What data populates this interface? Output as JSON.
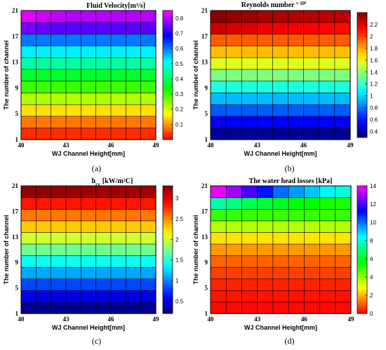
{
  "chart_data": [
    {
      "type": "heatmap",
      "panel_label": "(a)",
      "title": "Fluid Velocity[m³/s]",
      "xlabel": "WJ Channel Height[mm]",
      "ylabel": "The number of channel",
      "x_ticks": [
        "40",
        "43",
        "46",
        "49"
      ],
      "y_ticks": [
        "1",
        "5",
        "9",
        "13",
        "17",
        "21"
      ],
      "xlim": [
        40,
        49
      ],
      "ylim": [
        1,
        21
      ],
      "colormap": "jet-reversed",
      "colorbar_range": [
        0,
        0.85
      ],
      "colorbar_ticks": [
        "0.1",
        "0.2",
        "0.3",
        "0.4",
        "0.5",
        "0.6",
        "0.7",
        "0.8"
      ],
      "cols": 9,
      "rows": 11,
      "row_values": [
        0.03,
        0.08,
        0.15,
        0.22,
        0.3,
        0.37,
        0.45,
        0.52,
        0.6,
        0.68,
        0.76
      ],
      "top_row_values": [
        0.83,
        0.82,
        0.81,
        0.8,
        0.8,
        0.8,
        0.8,
        0.8,
        0.8
      ],
      "second_row_values": [
        0.76,
        0.75,
        0.74,
        0.74,
        0.74,
        0.74,
        0.74,
        0.74,
        0.74
      ],
      "grid": true
    },
    {
      "type": "heatmap",
      "panel_label": "(b)",
      "title": "Reynolds number",
      "title_multiplier": "× 10⁴",
      "xlabel": "WJ Channel Height[mm]",
      "ylabel": "The number of channel",
      "x_ticks": [
        "40",
        "43",
        "46",
        "49"
      ],
      "y_ticks": [
        "1",
        "5",
        "9",
        "13",
        "17",
        "21"
      ],
      "xlim": [
        40,
        49
      ],
      "ylim": [
        1,
        21
      ],
      "colormap": "jet",
      "colorbar_range": [
        0.3,
        2.4
      ],
      "colorbar_ticks": [
        "0.4",
        "0.6",
        "0.8",
        "1",
        "1.2",
        "1.4",
        "1.6",
        "1.8",
        "2",
        "2.2"
      ],
      "cols": 9,
      "rows": 11,
      "row_values": [
        0.35,
        0.55,
        0.75,
        0.95,
        1.15,
        1.35,
        1.55,
        1.75,
        1.95,
        2.15,
        2.3
      ],
      "top_row_values": [
        2.38,
        2.36,
        2.34,
        2.32,
        2.31,
        2.3,
        2.29,
        2.28,
        2.28
      ],
      "second_row_values": [
        2.25,
        2.22,
        2.2,
        2.18,
        2.16,
        2.15,
        2.14,
        2.13,
        2.12
      ],
      "grid": true
    },
    {
      "type": "heatmap",
      "panel_label": "(c)",
      "title_main": "h",
      "title_sub": "cv",
      "title_unit": "[kW/m²C]",
      "xlabel": "WJ Channel Height[mm]",
      "ylabel": "The number of channel",
      "x_ticks": [
        "40",
        "43",
        "46",
        "49"
      ],
      "y_ticks": [
        "1",
        "5",
        "9",
        "13",
        "17",
        "21"
      ],
      "xlim": [
        40,
        49
      ],
      "ylim": [
        1,
        21
      ],
      "colormap": "jet",
      "colorbar_range": [
        0.2,
        3.3
      ],
      "colorbar_ticks": [
        "0.5",
        "1",
        "1.5",
        "2",
        "2.5",
        "3"
      ],
      "cols": 9,
      "rows": 11,
      "row_values": [
        0.25,
        0.5,
        0.8,
        1.1,
        1.4,
        1.7,
        2.0,
        2.3,
        2.55,
        2.85,
        3.1
      ],
      "top_row_values": [
        3.25,
        3.24,
        3.23,
        3.22,
        3.21,
        3.2,
        3.2,
        3.2,
        3.2
      ],
      "second_row_values": [
        2.85,
        2.85,
        2.85,
        2.85,
        2.85,
        2.85,
        2.85,
        2.85,
        2.85
      ],
      "grid": true
    },
    {
      "type": "heatmap",
      "panel_label": "(d)",
      "title": "The water head losses [kPa]",
      "xlabel": "WJ Channel Height[mm]",
      "ylabel": "The number of channel",
      "x_ticks": [
        "40",
        "43",
        "46",
        "49"
      ],
      "y_ticks": [
        "1",
        "5",
        "9",
        "13",
        "17",
        "21"
      ],
      "xlim": [
        40,
        49
      ],
      "ylim": [
        1,
        21
      ],
      "colormap": "jet-reversed",
      "colorbar_range": [
        0,
        14
      ],
      "colorbar_ticks": [
        "0",
        "2",
        "4",
        "6",
        "8",
        "10",
        "12",
        "14"
      ],
      "cols": 9,
      "rows": 11,
      "row_values": [
        0.1,
        0.2,
        0.4,
        0.7,
        1.1,
        1.7,
        2.5,
        3.6,
        5.0,
        7.0,
        9.0
      ],
      "top_row_values": [
        13.8,
        13.0,
        12.0,
        11.0,
        10.0,
        9.5,
        9.0,
        8.5,
        8.0
      ],
      "second_row_values": [
        7.5,
        7.0,
        6.5,
        6.2,
        6.0,
        5.8,
        5.6,
        5.4,
        5.3
      ],
      "grid": true
    }
  ]
}
